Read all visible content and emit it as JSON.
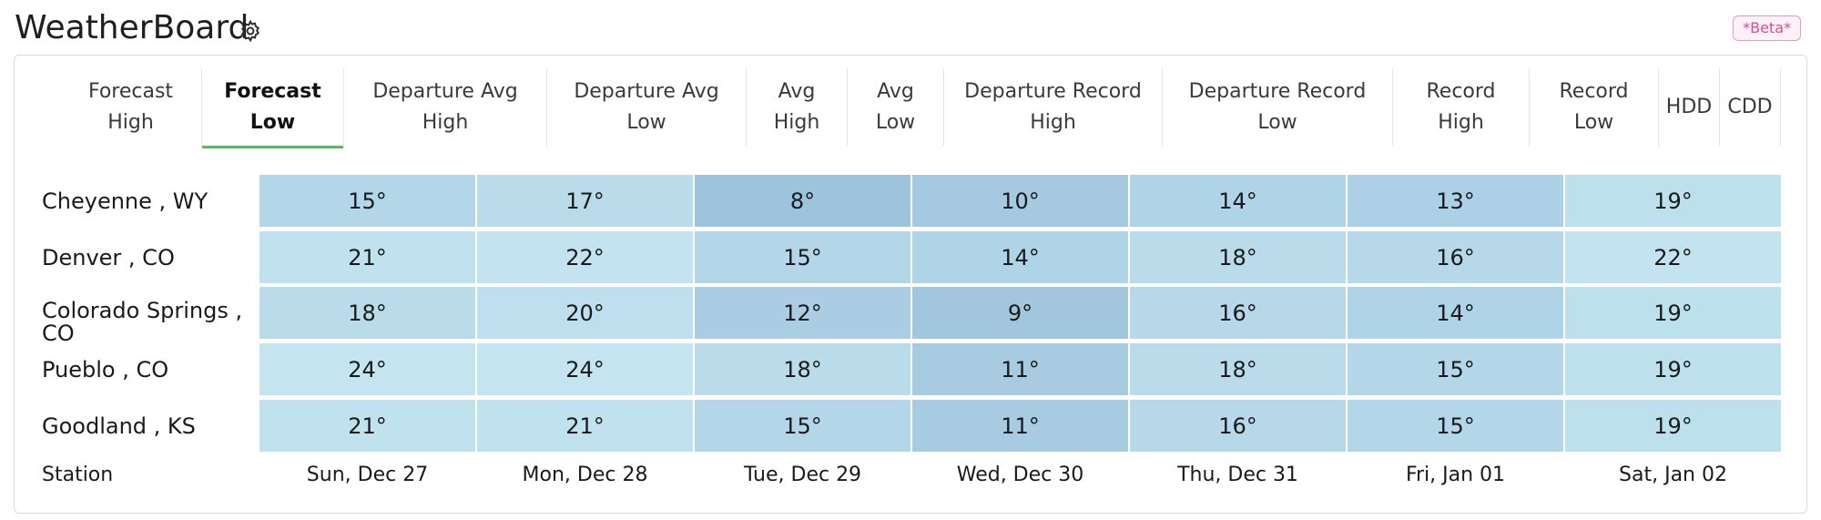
{
  "header": {
    "title": "WeatherBoard",
    "settings_icon": "gear-icon",
    "badge": "*Beta*"
  },
  "tabs": [
    {
      "label": "Forecast\nHigh",
      "active": false
    },
    {
      "label": "Forecast\nLow",
      "active": true
    },
    {
      "label": "Departure Avg\nHigh",
      "active": false
    },
    {
      "label": "Departure Avg\nLow",
      "active": false
    },
    {
      "label": "Avg\nHigh",
      "active": false
    },
    {
      "label": "Avg\nLow",
      "active": false
    },
    {
      "label": "Departure Record\nHigh",
      "active": false
    },
    {
      "label": "Departure Record\nLow",
      "active": false
    },
    {
      "label": "Record\nHigh",
      "active": false
    },
    {
      "label": "Record\nLow",
      "active": false
    },
    {
      "label": "HDD",
      "active": false
    },
    {
      "label": "CDD",
      "active": false
    }
  ],
  "table": {
    "footer_label": "Station",
    "dates": [
      "Sun, Dec 27",
      "Mon, Dec 28",
      "Tue, Dec 29",
      "Wed, Dec 30",
      "Thu, Dec 31",
      "Fri, Jan 01",
      "Sat, Jan 02"
    ],
    "rows": [
      {
        "station": "Cheyenne , WY",
        "values": [
          "15°",
          "17°",
          "8°",
          "10°",
          "14°",
          "13°",
          "19°"
        ],
        "colors": [
          "#b3d6e8",
          "#b9dbea",
          "#9dc3dd",
          "#a5c9e0",
          "#b0d4e7",
          "#acd0e5",
          "#bde0ed"
        ]
      },
      {
        "station": "Denver , CO",
        "values": [
          "21°",
          "22°",
          "15°",
          "14°",
          "18°",
          "16°",
          "22°"
        ],
        "colors": [
          "#c0e2ee",
          "#c2e3ef",
          "#b3d6e8",
          "#b0d4e7",
          "#badcea",
          "#b6d8e9",
          "#c2e3ef"
        ]
      },
      {
        "station": "Colorado Springs , CO",
        "values": [
          "18°",
          "20°",
          "12°",
          "9°",
          "16°",
          "14°",
          "19°"
        ],
        "colors": [
          "#badcea",
          "#bedfed",
          "#aacde3",
          "#a1c6de",
          "#b6d8e9",
          "#b0d4e7",
          "#bde0ed"
        ]
      },
      {
        "station": "Pueblo , CO",
        "values": [
          "24°",
          "24°",
          "18°",
          "11°",
          "18°",
          "15°",
          "19°"
        ],
        "colors": [
          "#c4e4f0",
          "#c4e4f0",
          "#badcea",
          "#a7cbe1",
          "#badcea",
          "#b3d6e8",
          "#bde0ed"
        ]
      },
      {
        "station": "Goodland , KS",
        "values": [
          "21°",
          "21°",
          "15°",
          "11°",
          "16°",
          "15°",
          "19°"
        ],
        "colors": [
          "#c0e2ee",
          "#c0e2ee",
          "#b3d6e8",
          "#a7cbe1",
          "#b6d8e9",
          "#b3d6e8",
          "#bde0ed"
        ]
      }
    ]
  }
}
